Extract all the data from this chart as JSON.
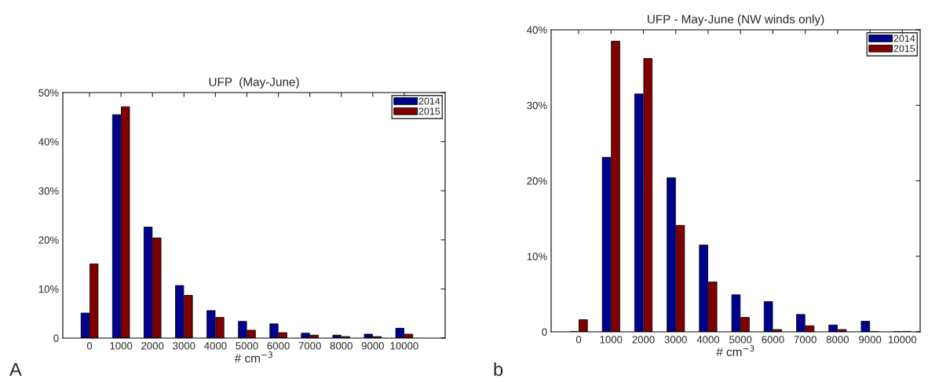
{
  "chart_data": [
    {
      "type": "bar",
      "title": "UFP  (May-June)",
      "xlabel": "# cm$^{−3}$",
      "categories": [
        "0",
        "1000",
        "2000",
        "3000",
        "4000",
        "5000",
        "6000",
        "7000",
        "8000",
        "9000",
        "10000"
      ],
      "series": [
        {
          "name": "2014",
          "color": "#00008f",
          "values": [
            5.1,
            45.5,
            22.6,
            10.7,
            5.6,
            3.4,
            2.9,
            1.0,
            0.6,
            0.8,
            2.0
          ]
        },
        {
          "name": "2015",
          "color": "#800000",
          "values": [
            15.1,
            47.1,
            20.4,
            8.7,
            4.2,
            1.6,
            1.1,
            0.6,
            0.3,
            0.3,
            0.8
          ]
        }
      ],
      "ylim": [
        0,
        50
      ],
      "yticks": [
        0,
        {
          "value": 10,
          "label": "10%"
        },
        {
          "value": 20,
          "label": "20%"
        },
        {
          "value": 30,
          "label": "30%"
        },
        {
          "value": 40,
          "label": "40%"
        },
        {
          "value": 50,
          "label": "50%"
        }
      ],
      "legend": "top right",
      "grid": false,
      "annotations": [
        "A"
      ]
    },
    {
      "type": "bar",
      "title": "UFP - May-June (NW winds only)",
      "xlabel": "# cm$^{−3}$",
      "categories": [
        "0",
        "1000",
        "2000",
        "3000",
        "4000",
        "5000",
        "6000",
        "7000",
        "8000",
        "9000",
        "10000"
      ],
      "series": [
        {
          "name": "2014",
          "color": "#00008f",
          "values": [
            0,
            23.1,
            31.5,
            20.4,
            11.5,
            4.9,
            4.0,
            2.3,
            0.9,
            1.4,
            0
          ]
        },
        {
          "name": "2015",
          "color": "#800000",
          "values": [
            1.6,
            38.5,
            36.2,
            14.1,
            6.6,
            1.9,
            0.3,
            0.8,
            0.3,
            0,
            0
          ]
        }
      ],
      "ylim": [
        0,
        40
      ],
      "yticks": [
        0,
        {
          "value": 10,
          "label": "10%"
        },
        {
          "value": 20,
          "label": "20%"
        },
        {
          "value": 30,
          "label": "30%"
        },
        {
          "value": 40,
          "label": "40%"
        }
      ],
      "legend": "top right",
      "grid": false,
      "annotations": [
        "b"
      ]
    }
  ]
}
